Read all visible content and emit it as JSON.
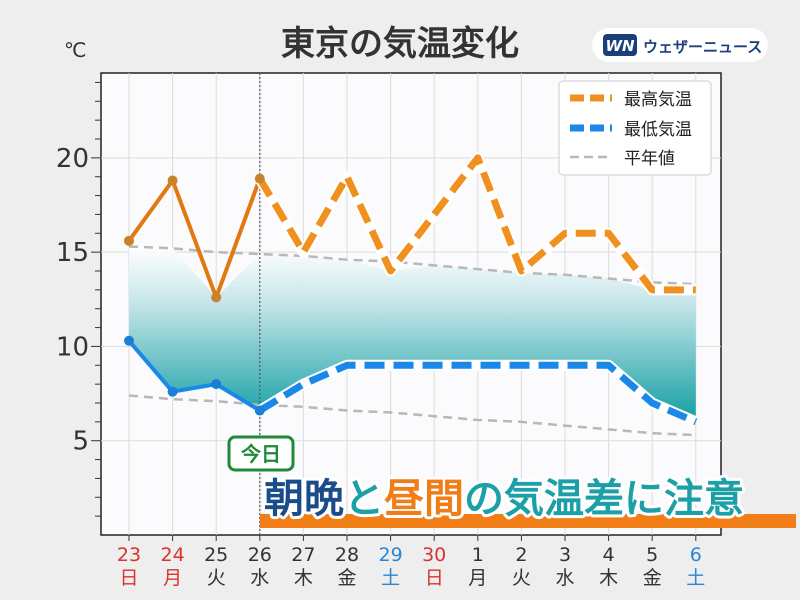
{
  "chart_data": {
    "type": "line",
    "title": "東京の気温変化",
    "ylabel": "℃",
    "ylim": [
      0,
      24.5
    ],
    "yticks": [
      "5",
      "10",
      "15",
      "20"
    ],
    "categories": [
      {
        "day": "23",
        "wd": "日",
        "color": "#d9332c"
      },
      {
        "day": "24",
        "wd": "月",
        "color": "#d9332c"
      },
      {
        "day": "25",
        "wd": "火",
        "color": "#333333"
      },
      {
        "day": "26",
        "wd": "水",
        "color": "#333333"
      },
      {
        "day": "27",
        "wd": "木",
        "color": "#333333"
      },
      {
        "day": "28",
        "wd": "金",
        "color": "#333333"
      },
      {
        "day": "29",
        "wd": "土",
        "color": "#2a86d4"
      },
      {
        "day": "30",
        "wd": "日",
        "color": "#d9332c"
      },
      {
        "day": "1",
        "wd": "月",
        "color": "#333333"
      },
      {
        "day": "2",
        "wd": "火",
        "color": "#333333"
      },
      {
        "day": "3",
        "wd": "水",
        "color": "#333333"
      },
      {
        "day": "4",
        "wd": "木",
        "color": "#333333"
      },
      {
        "day": "5",
        "wd": "金",
        "color": "#333333"
      },
      {
        "day": "6",
        "wd": "土",
        "color": "#2a86d4"
      }
    ],
    "today_index": 3,
    "series": [
      {
        "name": "最高気温",
        "values": [
          15.6,
          18.8,
          12.6,
          18.9,
          15,
          19,
          14,
          17,
          20,
          14,
          16,
          16,
          13,
          13
        ],
        "color": "#f0901e"
      },
      {
        "name": "最低気温",
        "values": [
          10.3,
          7.6,
          8,
          6.6,
          8,
          9,
          9,
          9,
          9,
          9,
          9,
          9,
          7,
          6
        ],
        "color": "#1a88e8"
      },
      {
        "name": "平年値",
        "values_high": [
          15.3,
          15.2,
          15.0,
          14.9,
          14.8,
          14.6,
          14.5,
          14.3,
          14.1,
          13.9,
          13.8,
          13.6,
          13.4,
          13.3
        ],
        "values_low": [
          7.4,
          7.2,
          7.1,
          6.9,
          6.8,
          6.6,
          6.5,
          6.3,
          6.1,
          6.0,
          5.8,
          5.6,
          5.4,
          5.3
        ],
        "color": "#b8b8b8"
      }
    ],
    "legend_position": "top-right",
    "grid": true
  },
  "brand": {
    "logo_text": "WN",
    "name": "ウェザーニュース"
  },
  "today_label": "今日",
  "headline": {
    "part1": "朝晩",
    "part2": "と",
    "part3": "昼間",
    "part4": "の気温差に注意"
  }
}
